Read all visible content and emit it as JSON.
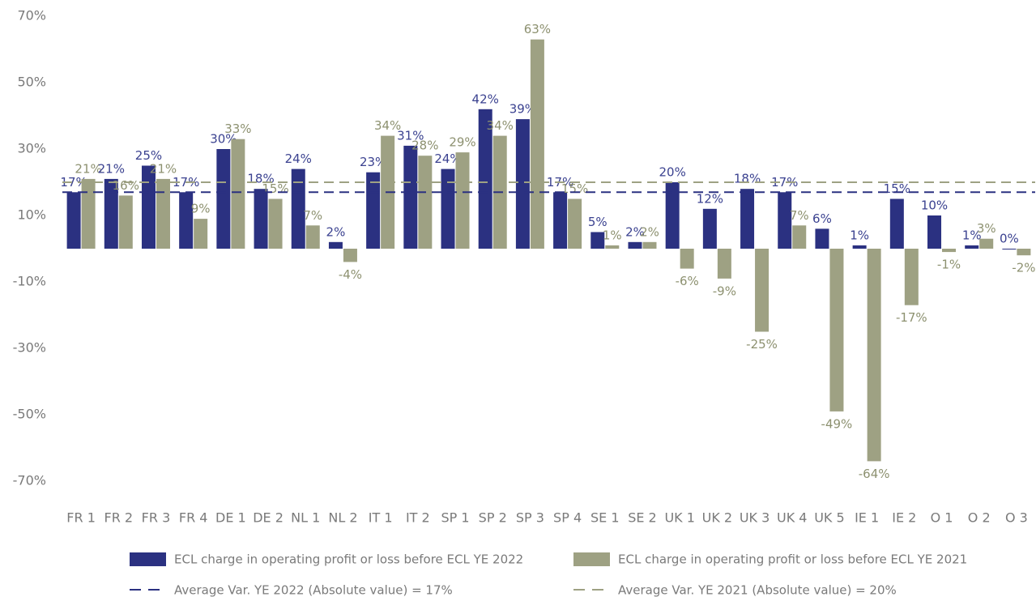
{
  "chart_data": {
    "type": "bar",
    "categories": [
      "FR 1",
      "FR 2",
      "FR 3",
      "FR 4",
      "DE 1",
      "DE 2",
      "NL 1",
      "NL 2",
      "IT 1",
      "IT 2",
      "SP 1",
      "SP 2",
      "SP 3",
      "SP 4",
      "SE 1",
      "SE 2",
      "UK 1",
      "UK 2",
      "UK 3",
      "UK 4",
      "UK 5",
      "IE 1",
      "IE 2",
      "O 1",
      "O 2",
      "O 3"
    ],
    "series": [
      {
        "name": "ECL charge in operating profit or loss before ECL YE 2022",
        "color": "#2b3181",
        "label_color": "#3b4290",
        "values": [
          17,
          21,
          25,
          17,
          30,
          18,
          24,
          2,
          23,
          31,
          24,
          42,
          39,
          17,
          5,
          2,
          20,
          12,
          18,
          17,
          6,
          1,
          15,
          10,
          1,
          0
        ],
        "value_labels": [
          "17%",
          "21%",
          "25%",
          "17%",
          "30%",
          "18%",
          "24%",
          "2%",
          "23%",
          "31%",
          "24%",
          "42%",
          "39%",
          "17%",
          "5%",
          "2%",
          "20%",
          "12%",
          "18%",
          "17%",
          "6%",
          "1%",
          "15%",
          "10%",
          "1%",
          "0%"
        ]
      },
      {
        "name": "ECL charge in operating profit or loss before ECL YE 2021",
        "color": "#9ea183",
        "label_color": "#8d9170",
        "values": [
          21,
          16,
          21,
          9,
          33,
          15,
          7,
          -4,
          34,
          28,
          29,
          34,
          63,
          15,
          1,
          2,
          -6,
          -9,
          -25,
          7,
          -49,
          -64,
          -17,
          -1,
          3,
          -2
        ],
        "value_labels": [
          "21%",
          "16%",
          "21%",
          "9%",
          "33%",
          "15%",
          "7%",
          "-4%",
          "34%",
          "28%",
          "29%",
          "34%",
          "63%",
          "15%",
          "1%",
          "2%",
          "-6%",
          "-9%",
          "-25%",
          "7%",
          "-49%",
          "-64%",
          "-17%",
          "-1%",
          "3%",
          "-2%"
        ]
      }
    ],
    "reference_lines": [
      {
        "value": 17,
        "label": "Average Var. YE 2022 (Absolute value) = 17%",
        "color": "#2b3181"
      },
      {
        "value": 20,
        "label": "Average Var. YE 2021 (Absolute value) = 20%",
        "color": "#9ea183"
      }
    ],
    "ylim": [
      -70,
      70
    ],
    "yticks": [
      {
        "value": 70,
        "label": "70%"
      },
      {
        "value": 50,
        "label": "50%"
      },
      {
        "value": 30,
        "label": "30%"
      },
      {
        "value": 10,
        "label": "10%"
      },
      {
        "value": -10,
        "label": "-10%"
      },
      {
        "value": -30,
        "label": "-30%"
      },
      {
        "value": -50,
        "label": "-50%"
      },
      {
        "value": -70,
        "label": "-70%"
      }
    ],
    "grid": false
  }
}
